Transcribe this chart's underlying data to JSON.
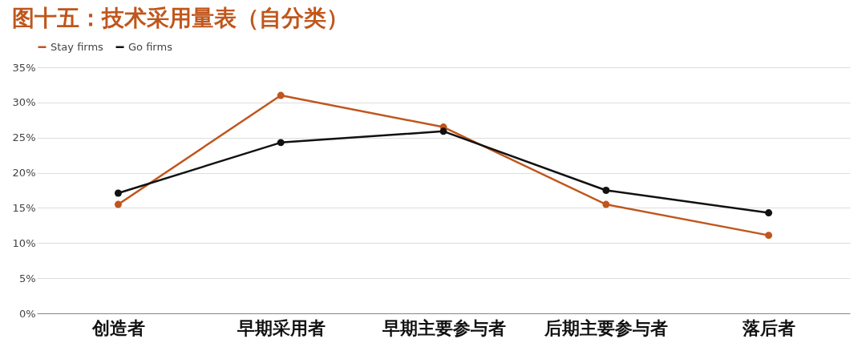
{
  "chart_data": {
    "type": "line",
    "title": "图十五：技术采用量表（自分类）",
    "categories": [
      "创造者",
      "早期采用者",
      "早期主要参与者",
      "后期主要参与者",
      "落后者"
    ],
    "series": [
      {
        "name": "Stay firms",
        "color": "#c0561b",
        "values": [
          15.5,
          31.0,
          26.5,
          15.5,
          11.1
        ]
      },
      {
        "name": "Go firms",
        "color": "#111111",
        "values": [
          17.1,
          24.3,
          25.9,
          17.5,
          14.3
        ]
      }
    ],
    "ylim": [
      0,
      35
    ],
    "yticks": [
      {
        "value": 0,
        "label": "0%"
      },
      {
        "value": 5,
        "label": "5%"
      },
      {
        "value": 10,
        "label": "10%"
      },
      {
        "value": 15,
        "label": "15%"
      },
      {
        "value": 20,
        "label": "20%"
      },
      {
        "value": 25,
        "label": "25%"
      },
      {
        "value": 30,
        "label": "30%"
      },
      {
        "value": 35,
        "label": "35%"
      }
    ],
    "grid": "y",
    "legend": "top left",
    "marker": "circle",
    "line_style": "solid"
  }
}
